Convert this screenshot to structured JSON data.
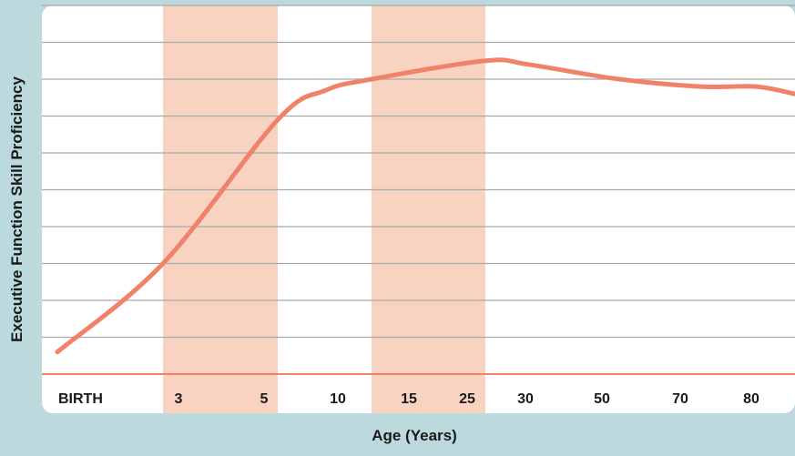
{
  "chart_data": {
    "type": "line",
    "title": "",
    "xlabel": "Age (Years)",
    "ylabel": "Executive Function Skill Proficiency",
    "categories": [
      "BIRTH",
      "3",
      "5",
      "10",
      "15",
      "25",
      "30",
      "50",
      "70",
      "80"
    ],
    "x": [
      0,
      3,
      5,
      10,
      15,
      25,
      30,
      50,
      70,
      80,
      90
    ],
    "y_axis_max": 10,
    "grid": "horizontal",
    "highlight_bands": [
      {
        "from": "3",
        "to": "5"
      },
      {
        "from": "15",
        "to": "25"
      }
    ],
    "series": [
      {
        "values": [
          0.6,
          3.0,
          6.9,
          7.7,
          8.0,
          8.5,
          8.4,
          8.0,
          7.8,
          7.8,
          7.6
        ]
      }
    ]
  },
  "colors": {
    "background": "#bcd9de",
    "plot_area": "#ffffff",
    "band": "#f8d3c2",
    "line": "#f0826a",
    "grid": "#a8a8a8",
    "text": "#1a1a1a"
  }
}
